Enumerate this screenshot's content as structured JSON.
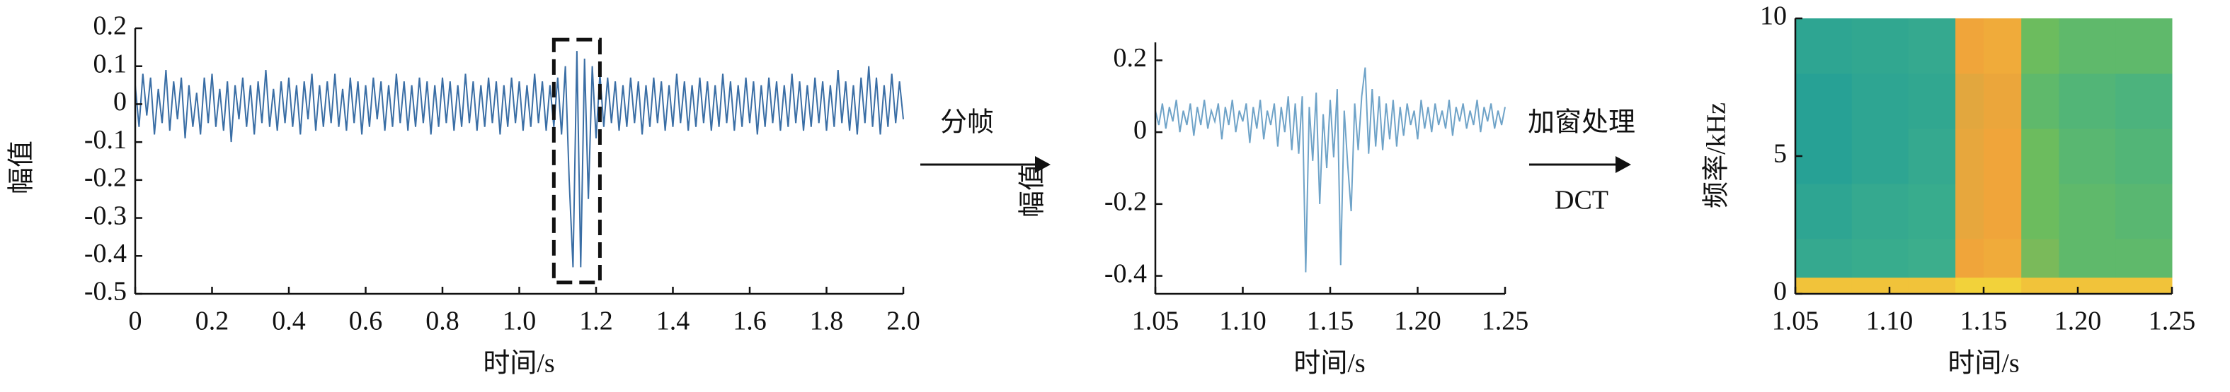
{
  "chart_data": [
    {
      "type": "line",
      "xlabel": "时间/s",
      "ylabel": "幅值",
      "color": "#3a6ea5",
      "xlim": [
        0,
        2
      ],
      "ylim": [
        -0.5,
        0.2
      ],
      "xticks": [
        0,
        0.2,
        0.4,
        0.6,
        0.8,
        {
          "value": 1,
          "label": "1.0"
        },
        1.2,
        1.4,
        1.6,
        1.8,
        {
          "value": 2,
          "label": "2.0"
        }
      ],
      "yticks": [
        0.2,
        0.1,
        0,
        -0.1,
        -0.2,
        -0.3,
        -0.4,
        -0.5
      ],
      "highlight": {
        "x": [
          1.09,
          1.21
        ],
        "y": [
          -0.47,
          0.17
        ]
      },
      "x": [
        0,
        0.01,
        0.02,
        0.03,
        0.04,
        0.05,
        0.06,
        0.07,
        0.08,
        0.09,
        0.1,
        0.11,
        0.12,
        0.13,
        0.14,
        0.15,
        0.16,
        0.17,
        0.18,
        0.19,
        0.2,
        0.21,
        0.22,
        0.23,
        0.24,
        0.25,
        0.26,
        0.27,
        0.28,
        0.29,
        0.3,
        0.31,
        0.32,
        0.33,
        0.34,
        0.35,
        0.36,
        0.37,
        0.38,
        0.39,
        0.4,
        0.41,
        0.42,
        0.43,
        0.44,
        0.45,
        0.46,
        0.47,
        0.48,
        0.49,
        0.5,
        0.51,
        0.52,
        0.53,
        0.54,
        0.55,
        0.56,
        0.57,
        0.58,
        0.59,
        0.6,
        0.61,
        0.62,
        0.63,
        0.64,
        0.65,
        0.66,
        0.67,
        0.68,
        0.69,
        0.7,
        0.71,
        0.72,
        0.73,
        0.74,
        0.75,
        0.76,
        0.77,
        0.78,
        0.79,
        0.8,
        0.81,
        0.82,
        0.83,
        0.84,
        0.85,
        0.86,
        0.87,
        0.88,
        0.89,
        0.9,
        0.91,
        0.92,
        0.93,
        0.94,
        0.95,
        0.96,
        0.97,
        0.98,
        0.99,
        1,
        1.01,
        1.02,
        1.03,
        1.04,
        1.05,
        1.06,
        1.07,
        1.08,
        1.09,
        1.1,
        1.11,
        1.12,
        1.13,
        1.14,
        1.15,
        1.16,
        1.17,
        1.18,
        1.19,
        1.2,
        1.21,
        1.22,
        1.23,
        1.24,
        1.25,
        1.26,
        1.27,
        1.28,
        1.29,
        1.3,
        1.31,
        1.32,
        1.33,
        1.34,
        1.35,
        1.36,
        1.37,
        1.38,
        1.39,
        1.4,
        1.41,
        1.42,
        1.43,
        1.44,
        1.45,
        1.46,
        1.47,
        1.48,
        1.49,
        1.5,
        1.51,
        1.52,
        1.53,
        1.54,
        1.55,
        1.56,
        1.57,
        1.58,
        1.59,
        1.6,
        1.61,
        1.62,
        1.63,
        1.64,
        1.65,
        1.66,
        1.67,
        1.68,
        1.69,
        1.7,
        1.71,
        1.72,
        1.73,
        1.74,
        1.75,
        1.76,
        1.77,
        1.78,
        1.79,
        1.8,
        1.81,
        1.82,
        1.83,
        1.84,
        1.85,
        1.86,
        1.87,
        1.88,
        1.89,
        1.9,
        1.91,
        1.92,
        1.93,
        1.94,
        1.95,
        1.96,
        1.97,
        1.98,
        1.99,
        2
      ],
      "values": [
        0.05,
        -0.06,
        0.08,
        -0.03,
        0.07,
        -0.08,
        0.04,
        -0.05,
        0.09,
        -0.07,
        0.06,
        -0.04,
        0.07,
        -0.09,
        0.05,
        -0.06,
        0.03,
        -0.08,
        0.07,
        -0.05,
        0.08,
        -0.06,
        0.04,
        -0.07,
        0.06,
        -0.1,
        0.05,
        -0.04,
        0.07,
        -0.06,
        0.05,
        -0.08,
        0.06,
        -0.05,
        0.09,
        -0.06,
        0.04,
        -0.07,
        0.06,
        -0.05,
        0.07,
        -0.06,
        0.05,
        -0.08,
        0.06,
        -0.04,
        0.08,
        -0.07,
        0.05,
        -0.06,
        0.06,
        -0.05,
        0.08,
        -0.06,
        0.04,
        -0.07,
        0.07,
        -0.05,
        0.06,
        -0.08,
        0.05,
        -0.06,
        0.07,
        -0.04,
        0.06,
        -0.07,
        0.05,
        -0.06,
        0.08,
        -0.05,
        0.06,
        -0.07,
        0.05,
        -0.06,
        0.07,
        -0.05,
        0.06,
        -0.08,
        0.05,
        -0.06,
        0.07,
        -0.05,
        0.06,
        -0.07,
        0.05,
        -0.06,
        0.08,
        -0.05,
        0.06,
        -0.07,
        0.05,
        -0.06,
        0.07,
        -0.05,
        0.06,
        -0.08,
        0.05,
        -0.06,
        0.07,
        -0.05,
        0.06,
        -0.07,
        0.05,
        -0.06,
        0.08,
        -0.05,
        0.06,
        -0.07,
        0.05,
        -0.06,
        0.07,
        -0.08,
        0.1,
        -0.2,
        -0.43,
        0.14,
        -0.43,
        0.12,
        -0.25,
        0.1,
        -0.09,
        0.08,
        -0.06,
        0.07,
        -0.05,
        0.06,
        -0.07,
        0.05,
        -0.06,
        0.07,
        -0.05,
        0.06,
        -0.08,
        0.05,
        -0.06,
        0.07,
        -0.05,
        0.06,
        -0.07,
        0.05,
        -0.06,
        0.08,
        -0.05,
        0.06,
        -0.07,
        0.05,
        -0.06,
        0.07,
        -0.05,
        0.06,
        -0.07,
        0.05,
        -0.06,
        0.08,
        -0.05,
        0.06,
        -0.07,
        0.05,
        -0.06,
        0.07,
        -0.05,
        0.06,
        -0.08,
        0.05,
        -0.06,
        0.07,
        -0.05,
        0.06,
        -0.07,
        0.05,
        -0.06,
        0.08,
        -0.05,
        0.06,
        -0.07,
        0.05,
        -0.06,
        0.07,
        -0.05,
        0.06,
        -0.07,
        0.05,
        -0.06,
        0.09,
        -0.05,
        0.06,
        -0.07,
        0.05,
        -0.08,
        0.07,
        -0.05,
        0.1,
        -0.06,
        0.07,
        -0.08,
        0.05,
        -0.06,
        0.08,
        -0.05,
        0.06,
        -0.04
      ]
    },
    {
      "type": "line",
      "xlabel": "时间/s",
      "ylabel": "幅值",
      "color": "#6fa3c8",
      "xlim": [
        1.05,
        1.25
      ],
      "ylim": [
        -0.45,
        0.25
      ],
      "xticks": [
        1.05,
        {
          "value": 1.1,
          "label": "1.10"
        },
        1.15,
        {
          "value": 1.2,
          "label": "1.20"
        },
        1.25
      ],
      "yticks": [
        0.2,
        0,
        -0.2,
        -0.4
      ],
      "x": [
        1.05,
        1.052,
        1.054,
        1.056,
        1.058,
        1.06,
        1.062,
        1.064,
        1.066,
        1.068,
        1.07,
        1.072,
        1.074,
        1.076,
        1.078,
        1.08,
        1.082,
        1.084,
        1.086,
        1.088,
        1.09,
        1.092,
        1.094,
        1.096,
        1.098,
        1.1,
        1.102,
        1.104,
        1.106,
        1.108,
        1.11,
        1.112,
        1.114,
        1.116,
        1.118,
        1.12,
        1.122,
        1.124,
        1.126,
        1.128,
        1.13,
        1.132,
        1.134,
        1.136,
        1.138,
        1.14,
        1.142,
        1.144,
        1.146,
        1.148,
        1.15,
        1.152,
        1.154,
        1.156,
        1.158,
        1.16,
        1.162,
        1.164,
        1.166,
        1.168,
        1.17,
        1.172,
        1.174,
        1.176,
        1.178,
        1.18,
        1.182,
        1.184,
        1.186,
        1.188,
        1.19,
        1.192,
        1.194,
        1.196,
        1.198,
        1.2,
        1.202,
        1.204,
        1.206,
        1.208,
        1.21,
        1.212,
        1.214,
        1.216,
        1.218,
        1.22,
        1.222,
        1.224,
        1.226,
        1.228,
        1.23,
        1.232,
        1.234,
        1.236,
        1.238,
        1.24,
        1.242,
        1.244,
        1.246,
        1.248,
        1.25
      ],
      "values": [
        0.06,
        0.02,
        0.08,
        0.01,
        0.07,
        0.03,
        0.09,
        0,
        0.06,
        0.02,
        0.08,
        -0.01,
        0.07,
        0.02,
        0.09,
        0.01,
        0.06,
        0.03,
        0.08,
        -0.02,
        0.07,
        0.02,
        0.09,
        0,
        0.06,
        0.03,
        0.08,
        -0.03,
        0.07,
        0.01,
        0.09,
        -0.02,
        0.06,
        0.02,
        0.08,
        -0.04,
        0.07,
        0,
        0.1,
        -0.05,
        0.08,
        -0.06,
        0.1,
        -0.39,
        0.07,
        -0.08,
        0.11,
        -0.2,
        0.05,
        -0.1,
        0.09,
        -0.07,
        0.12,
        -0.37,
        0.06,
        -0.09,
        -0.22,
        0.08,
        -0.05,
        0.1,
        0.18,
        -0.06,
        0.12,
        -0.04,
        0.1,
        -0.05,
        0.08,
        -0.02,
        0.09,
        -0.04,
        0.07,
        -0.01,
        0.08,
        0.02,
        0.06,
        -0.02,
        0.09,
        0.01,
        0.07,
        0,
        0.08,
        0.02,
        0.06,
        0.01,
        0.09,
        -0.01,
        0.07,
        0.03,
        0.08,
        0.01,
        0.06,
        0.02,
        0.09,
        0,
        0.07,
        0.03,
        0.08,
        0.01,
        0.06,
        0.02,
        0.07
      ]
    },
    {
      "type": "heatmap",
      "xlabel": "时间/s",
      "ylabel": "频率/kHz",
      "xlim": [
        1.05,
        1.25
      ],
      "ylim": [
        0,
        10
      ],
      "xticks": [
        1.05,
        {
          "value": 1.1,
          "label": "1.10"
        },
        1.15,
        {
          "value": 1.2,
          "label": "1.20"
        },
        1.25
      ],
      "yticks": [
        0,
        5,
        10
      ],
      "colormap": [
        {
          "value": 0.35,
          "color": "#1d9a9a"
        },
        {
          "value": 0.45,
          "color": "#3fb08a"
        },
        {
          "value": 0.52,
          "color": "#6cbc5e"
        },
        {
          "value": 0.8,
          "color": "#f0a53a"
        },
        {
          "value": 0.95,
          "color": "#f2d23a"
        }
      ],
      "xbins": [
        1.05,
        1.08,
        1.11,
        1.135,
        1.15,
        1.17,
        1.19,
        1.22,
        1.25
      ],
      "ybins": [
        0,
        0.6,
        2,
        4,
        6,
        8,
        10
      ],
      "z": [
        [
          0.9,
          0.9,
          0.9,
          0.95,
          0.95,
          0.9,
          0.9,
          0.9
        ],
        [
          0.42,
          0.43,
          0.44,
          0.8,
          0.82,
          0.55,
          0.5,
          0.5
        ],
        [
          0.4,
          0.42,
          0.43,
          0.78,
          0.8,
          0.52,
          0.5,
          0.49
        ],
        [
          0.38,
          0.4,
          0.42,
          0.78,
          0.8,
          0.52,
          0.49,
          0.48
        ],
        [
          0.38,
          0.4,
          0.41,
          0.77,
          0.79,
          0.5,
          0.48,
          0.47
        ],
        [
          0.4,
          0.41,
          0.42,
          0.8,
          0.82,
          0.52,
          0.5,
          0.5
        ]
      ]
    }
  ],
  "arrows": [
    {
      "labels": [
        "分帧"
      ]
    },
    {
      "labels": [
        "加窗处理",
        "DCT"
      ]
    }
  ]
}
